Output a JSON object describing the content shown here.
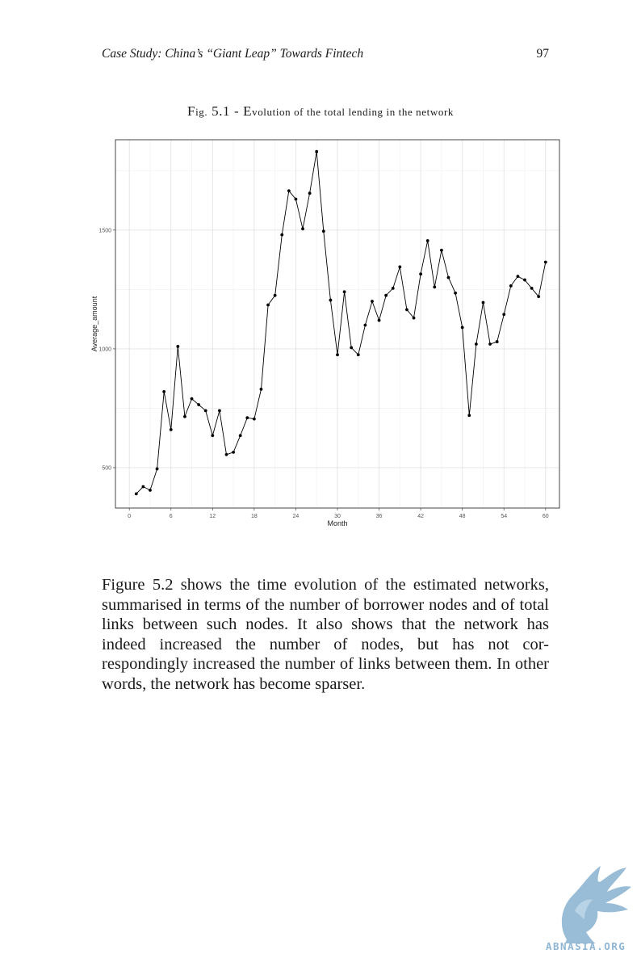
{
  "header": {
    "running_title": "Case Study: China’s “Giant Leap” Towards Fintech",
    "page_number": "97"
  },
  "figure": {
    "caption_prefix": "F",
    "caption_prefix_small": "ig.",
    "caption_number": "5.1 - ",
    "caption_title_initial": "E",
    "caption_title_small": "volution of the total lending in the network"
  },
  "chart_data": {
    "type": "line",
    "xlabel": "Month",
    "ylabel": "Average_amount",
    "xlim": [
      -2,
      62
    ],
    "ylim": [
      330,
      1880
    ],
    "x_ticks": [
      0,
      6,
      12,
      18,
      24,
      30,
      36,
      42,
      48,
      54,
      60
    ],
    "y_ticks": [
      500,
      1000,
      1500
    ],
    "x_tick_labels": [
      "0",
      "6",
      "12",
      "18",
      "24",
      "30",
      "36",
      "42",
      "48",
      "54",
      "60"
    ],
    "y_tick_labels": [
      "500",
      "1000",
      "1500"
    ],
    "grid": true,
    "line_color": "#000000",
    "x": [
      1,
      2,
      3,
      4,
      5,
      6,
      7,
      8,
      9,
      10,
      11,
      12,
      13,
      14,
      15,
      16,
      17,
      18,
      19,
      20,
      21,
      22,
      23,
      24,
      25,
      26,
      27,
      28,
      29,
      30,
      31,
      32,
      33,
      34,
      35,
      36,
      37,
      38,
      39,
      40,
      41,
      42,
      43,
      44,
      45,
      46,
      47,
      48,
      49,
      50,
      51,
      52,
      53,
      54,
      55,
      56,
      57,
      58,
      59,
      60
    ],
    "values": [
      390,
      420,
      405,
      495,
      820,
      660,
      1010,
      715,
      790,
      765,
      740,
      635,
      740,
      555,
      565,
      635,
      710,
      705,
      830,
      1185,
      1225,
      1480,
      1665,
      1630,
      1505,
      1655,
      1830,
      1495,
      1205,
      975,
      1240,
      1005,
      975,
      1100,
      1200,
      1120,
      1225,
      1255,
      1345,
      1165,
      1130,
      1315,
      1455,
      1260,
      1415,
      1300,
      1235,
      1090,
      720,
      1020,
      1195,
      1020,
      1030,
      1145,
      1265,
      1305,
      1290,
      1255,
      1220,
      1365
    ]
  },
  "body": {
    "paragraph": "Figure 5.2 shows the time evolution of the estimated networks, summarised in terms of the number of borrower nodes and of total links between such nodes. It also shows that the network has indeed increased the number of nodes, but has not cor-respondingly increased the number of links between them. In other words, the network has become sparser."
  },
  "watermark": {
    "text": "ABNASIA.ORG",
    "color": "#8fb6d3"
  }
}
